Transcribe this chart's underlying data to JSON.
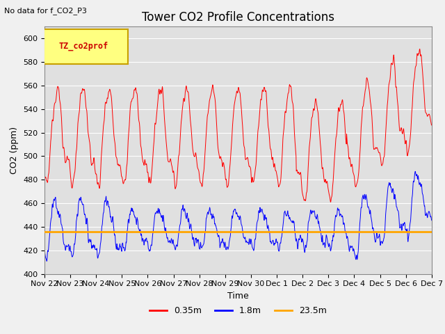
{
  "title": "Tower CO2 Profile Concentrations",
  "subtitle": "No data for f_CO2_P3",
  "ylabel": "CO2 (ppm)",
  "xlabel": "Time",
  "ylim": [
    400,
    610
  ],
  "yticks": [
    400,
    420,
    440,
    460,
    480,
    500,
    520,
    540,
    560,
    580,
    600
  ],
  "plot_bg_color": "#e0e0e0",
  "fig_bg_color": "#f0f0f0",
  "legend_box_label": "TZ_co2prof",
  "legend_box_facecolor": "#ffff80",
  "legend_box_edgecolor": "#c8a000",
  "legend_box_text_color": "#cc0000",
  "line_035m_color": "#ff0000",
  "line_18m_color": "#0000ff",
  "line_235m_color": "#ffa500",
  "line_235m_value": 436,
  "x_tick_labels": [
    "Nov 22",
    "Nov 23",
    "Nov 24",
    "Nov 25",
    "Nov 26",
    "Nov 27",
    "Nov 28",
    "Nov 29",
    "Nov 30",
    "Dec 1",
    "Dec 2",
    "Dec 3",
    "Dec 4",
    "Dec 5",
    "Dec 6",
    "Dec 7"
  ],
  "title_fontsize": 12,
  "label_fontsize": 9,
  "tick_fontsize": 8,
  "legend_fontsize": 9,
  "n_days": 15,
  "n_per_day": 96
}
